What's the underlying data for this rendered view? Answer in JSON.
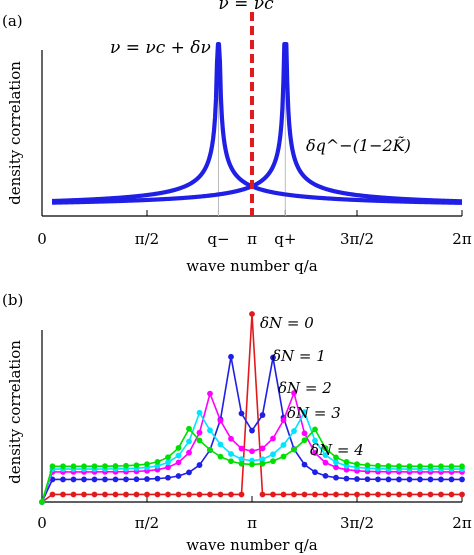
{
  "chart_data": [
    {
      "panel_label": "(a)",
      "type": "line",
      "xlabel": "wave number q/a",
      "ylabel": "density correlation",
      "xlim": [
        0,
        6.2832
      ],
      "ylim": [
        0,
        1.0
      ],
      "x_ticks": [
        {
          "value": 0,
          "label": "0"
        },
        {
          "value": 1.5708,
          "label": "π/2"
        },
        {
          "value": 2.64,
          "label": "q−"
        },
        {
          "value": 3.1416,
          "label": "π"
        },
        {
          "value": 3.64,
          "label": "q+"
        },
        {
          "value": 4.7124,
          "label": "3π/2"
        },
        {
          "value": 6.2832,
          "label": "2π"
        }
      ],
      "annotations": {
        "critical": "ν = νc",
        "offcritical": "ν = νc + δν",
        "powerlaw": "δq^−(1−2K̃)"
      },
      "vertical_line_x": 3.1416,
      "peaks_x": [
        2.64,
        3.64
      ],
      "colors": {
        "curve": "#1f1fe6",
        "critical": "#e31a1c"
      },
      "grid": false
    },
    {
      "panel_label": "(b)",
      "type": "line",
      "xlabel": "wave number q/a",
      "ylabel": "density correlation",
      "xlim": [
        0,
        6.2832
      ],
      "ylim": [
        0,
        1.0
      ],
      "x_ticks": [
        {
          "value": 0,
          "label": "0"
        },
        {
          "value": 1.5708,
          "label": "π/2"
        },
        {
          "value": 3.1416,
          "label": "π"
        },
        {
          "value": 4.7124,
          "label": "3π/2"
        },
        {
          "value": 6.2832,
          "label": "2π"
        }
      ],
      "series": [
        {
          "name": "δN = 0",
          "color": "#e31a1c",
          "level": 0.04,
          "peak_type": "single",
          "peaks": [
            [
              3.1416,
              1.0
            ]
          ]
        },
        {
          "name": "δN = 1",
          "color": "#1f1fe6",
          "level": 0.12,
          "peak_type": "double",
          "peaks": [
            [
              2.83,
              0.78
            ],
            [
              3.46,
              0.78
            ]
          ],
          "center": 0.38
        },
        {
          "name": "δN = 2",
          "color": "#ff00ff",
          "level": 0.16,
          "peak_type": "double",
          "peaks": [
            [
              2.51,
              0.58
            ],
            [
              3.77,
              0.58
            ]
          ],
          "center": 0.27
        },
        {
          "name": "δN = 3",
          "color": "#00e5ff",
          "level": 0.175,
          "peak_type": "double",
          "peaks": [
            [
              2.36,
              0.48
            ],
            [
              3.93,
              0.48
            ]
          ],
          "center": 0.22
        },
        {
          "name": "δN = 4",
          "color": "#00e000",
          "level": 0.19,
          "peak_type": "double",
          "peaks": [
            [
              2.2,
              0.39
            ],
            [
              4.08,
              0.39
            ]
          ],
          "center": 0.2
        }
      ],
      "grid": false
    }
  ]
}
